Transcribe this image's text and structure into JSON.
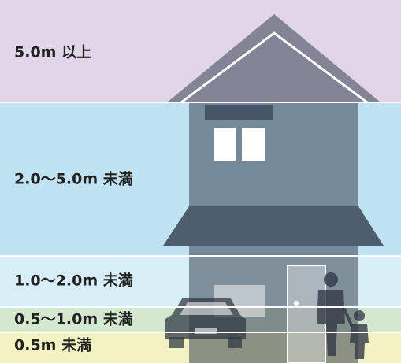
{
  "bands": [
    {
      "label": "5.0m 以上"
    },
    {
      "label": "2.0～5.0m 未満"
    },
    {
      "label": "1.0～2.0m 未満"
    },
    {
      "label": "0.5～1.0m 未満"
    },
    {
      "label": "0.5m 未満"
    }
  ]
}
